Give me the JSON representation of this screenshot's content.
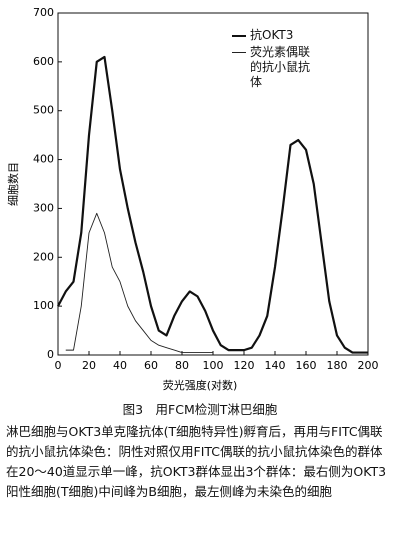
{
  "chart_data": {
    "type": "line",
    "xlabel": "荧光强度(对数)",
    "ylabel": "细胞数目",
    "x": [
      0,
      5,
      10,
      15,
      20,
      25,
      30,
      35,
      40,
      45,
      50,
      55,
      60,
      65,
      70,
      75,
      80,
      85,
      90,
      95,
      100,
      105,
      110,
      115,
      120,
      125,
      130,
      135,
      140,
      145,
      150,
      155,
      160,
      165,
      170,
      175,
      180,
      185,
      190,
      200
    ],
    "series": [
      {
        "name": "抗OKT3",
        "color": "#111111",
        "width": 2.2,
        "values": [
          100,
          130,
          150,
          250,
          450,
          600,
          610,
          500,
          380,
          300,
          230,
          170,
          100,
          50,
          40,
          80,
          110,
          130,
          120,
          90,
          50,
          20,
          10,
          10,
          10,
          15,
          40,
          80,
          180,
          300,
          430,
          440,
          420,
          350,
          230,
          110,
          40,
          15,
          5,
          5
        ]
      },
      {
        "name": "荧光素偶联的抗小鼠抗体",
        "color": "#222222",
        "width": 0.9,
        "values": [
          null,
          10,
          10,
          100,
          250,
          290,
          250,
          180,
          150,
          100,
          70,
          50,
          30,
          20,
          15,
          10,
          5,
          5,
          5,
          5,
          5,
          null,
          null,
          null,
          null,
          null,
          null,
          null,
          null,
          null,
          null,
          null,
          null,
          null,
          null,
          null,
          null,
          null,
          null,
          null
        ]
      }
    ],
    "xlim": [
      0,
      200
    ],
    "xticks": [
      0,
      20,
      40,
      60,
      80,
      100,
      120,
      140,
      160,
      180,
      200
    ],
    "ylim": [
      0,
      700
    ],
    "yticks": [
      0,
      100,
      200,
      300,
      400,
      500,
      600,
      700
    ]
  },
  "caption": {
    "title": "图3　用FCM检测T淋巴细胞",
    "text": "淋巴细胞与OKT3单克隆抗体(T细胞特异性)孵育后，再用与FITC偶联的抗小鼠抗体染色：阴性对照仅用FITC偶联的抗小鼠抗体染色的群体在20～40道显示单一峰，抗OKT3群体显出3个群体：最右侧为OKT3阳性细胞(T细胞)中间峰为B细胞，最左侧峰为未染色的细胞"
  }
}
